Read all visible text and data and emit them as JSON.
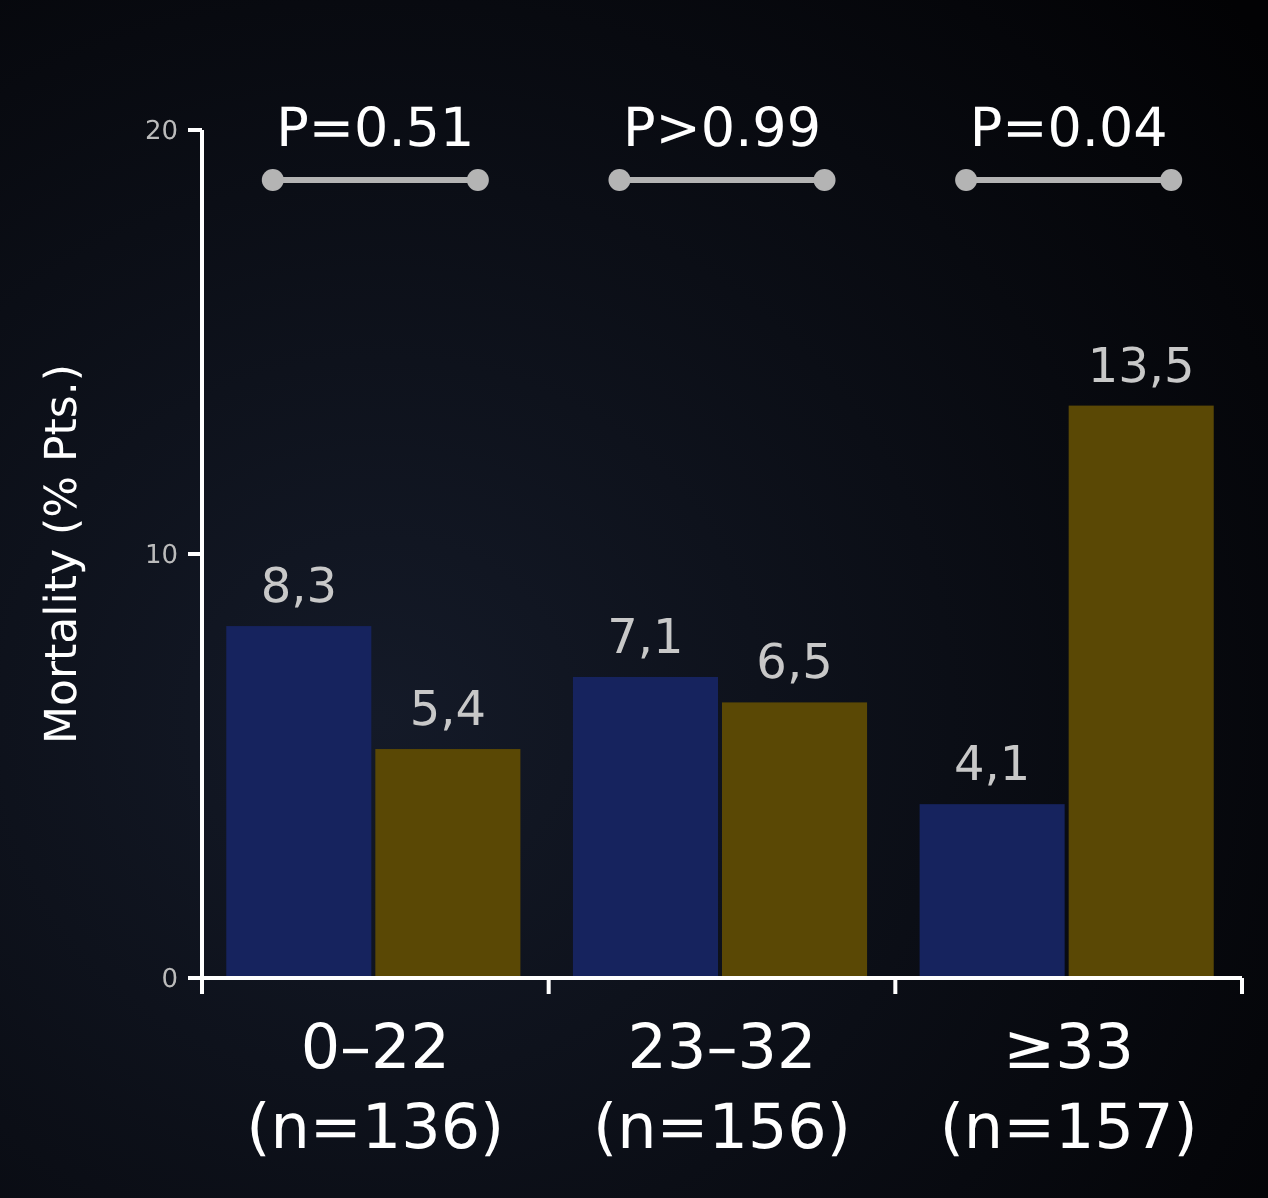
{
  "chart_data": {
    "type": "bar",
    "ylabel": "Mortality (% Pts.)",
    "categories": [
      "0–22\n(n=136)",
      "23–32\n(n=156)",
      "≥33\n(n=157)"
    ],
    "series": [
      {
        "color": "#16235e",
        "values": [
          8.3,
          7.1,
          4.1
        ],
        "value_labels": [
          "8,3",
          "7,1",
          "4,1"
        ]
      },
      {
        "color": "#5a4805",
        "values": [
          5.4,
          6.5,
          13.5
        ],
        "value_labels": [
          "5,4",
          "6,5",
          "13,5"
        ]
      }
    ],
    "ylim": [
      0,
      20
    ],
    "yticks": [
      0,
      10,
      20
    ],
    "grid": false,
    "annotations": [
      "P=0.51",
      "P>0.99",
      "P=0.04"
    ]
  }
}
